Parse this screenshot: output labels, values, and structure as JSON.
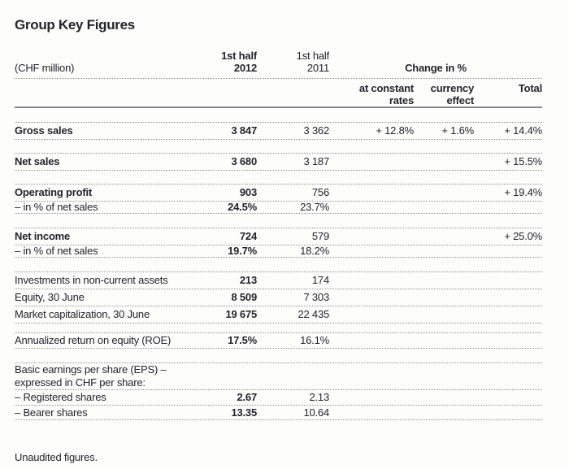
{
  "page": {
    "title": "Group Key Figures",
    "footer": "Unaudited figures."
  },
  "header": {
    "unit": "(CHF million)",
    "col2012": {
      "line1": "1st half",
      "line2": "2012"
    },
    "col2011": {
      "line1": "1st half",
      "line2": "2011"
    },
    "change": "Change in %",
    "sub": {
      "constant": {
        "line1": "at constant",
        "line2": "rates"
      },
      "currency": {
        "line1": "currency",
        "line2": "effect"
      },
      "total": "Total"
    }
  },
  "table": {
    "groups": [
      {
        "rows": [
          {
            "label": "Gross sales",
            "h2012": "3 847",
            "h2011": "3 362",
            "constant": "+ 12.8%",
            "currency": "+ 1.6%",
            "total": "+ 14.4%"
          }
        ]
      },
      {
        "rows": [
          {
            "label": "Net sales",
            "h2012": "3 680",
            "h2011": "3 187",
            "total": "+ 15.5%"
          }
        ]
      },
      {
        "rows": [
          {
            "label": "Operating profit",
            "h2012": "903",
            "h2011": "756",
            "total": "+ 19.4%"
          },
          {
            "label": "– in % of net sales",
            "h2012": "24.5%",
            "h2011": "23.7%"
          }
        ]
      },
      {
        "rows": [
          {
            "label": "Net income",
            "h2012": "724",
            "h2011": "579",
            "total": "+ 25.0%"
          },
          {
            "label": "– in % of net sales",
            "h2012": "19.7%",
            "h2011": "18.2%"
          }
        ]
      },
      {
        "rows": [
          {
            "label": "Investments in non-current assets",
            "h2012": "213",
            "h2011": "174"
          },
          {
            "label": "Equity, 30 June",
            "h2012": "8 509",
            "h2011": "7 303"
          },
          {
            "label": "Market capitalization, 30 June",
            "h2012": "19 675",
            "h2011": "22 435"
          }
        ]
      },
      {
        "rows": [
          {
            "label": "Annualized return on equity (ROE)",
            "h2012": "17.5%",
            "h2011": "16.1%"
          }
        ]
      },
      {
        "note": {
          "line1": "Basic earnings per share (EPS) –",
          "line2": "expressed in CHF per share:"
        },
        "rows": [
          {
            "label": "– Registered shares",
            "h2012": "2.67",
            "h2011": "2.13"
          },
          {
            "label": "– Bearer shares",
            "h2012": "13.35",
            "h2011": "10.64"
          }
        ]
      }
    ]
  },
  "colors": {
    "text": "#24242c",
    "rule_dotted": "#8f8f8f",
    "rule_solid": "#87878c",
    "background": "#fdfdfc"
  }
}
